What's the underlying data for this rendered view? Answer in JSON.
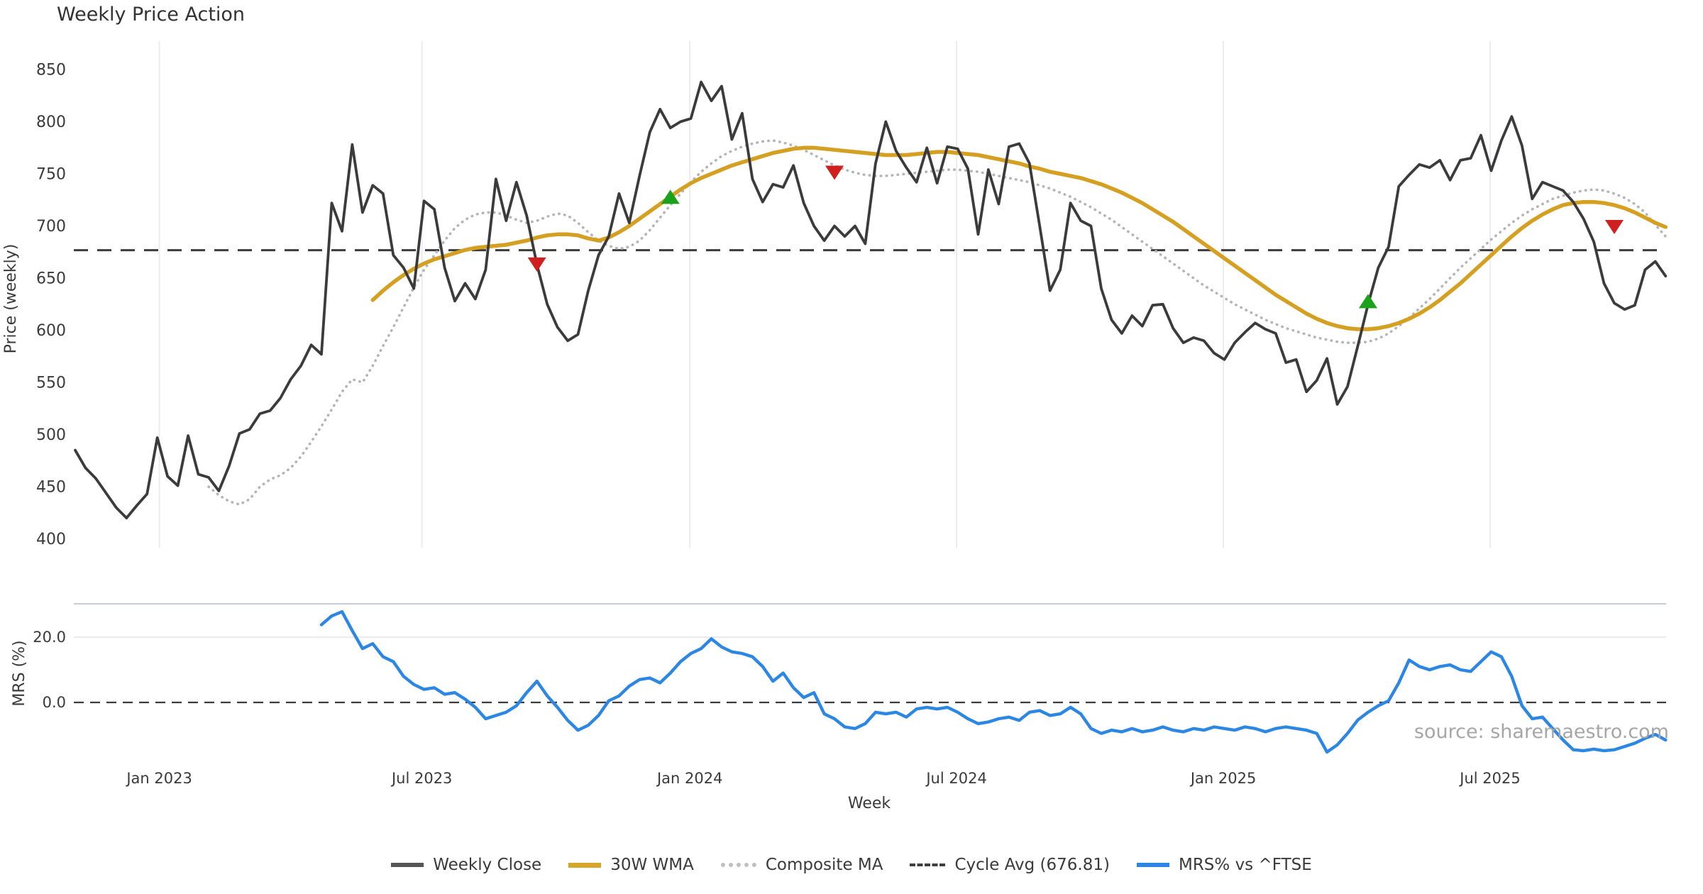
{
  "title": "Weekly Price Action",
  "source": "source: sharemaestro.com",
  "x_label": "Week",
  "price_panel": {
    "y_label": "Price (weekly)",
    "y_ticks": [
      850,
      800,
      750,
      700,
      650,
      600,
      550,
      500,
      450,
      400
    ]
  },
  "mrs_panel": {
    "y_label": "MRS (%)",
    "y_ticks": [
      {
        "label": "20.0",
        "value": 20
      },
      {
        "label": "0.0",
        "value": 0
      }
    ]
  },
  "legend": [
    {
      "label": "Weekly Close",
      "style": "solid-dark"
    },
    {
      "label": "30W WMA",
      "style": "solid-gold"
    },
    {
      "label": "Composite MA",
      "style": "dotted-gray"
    },
    {
      "label": "Cycle Avg (676.81)",
      "style": "dashed-dark"
    },
    {
      "label": "MRS% vs ^FTSE",
      "style": "solid-blue"
    }
  ],
  "colors": {
    "weekly_close": "#3b3b3b",
    "wma": "#d5a021",
    "composite": "#b5b5b5",
    "cycle_avg": "#3b3b3b",
    "mrs": "#2b87e3",
    "buy_marker": "#1aa21a",
    "sell_marker": "#d01f1f",
    "gridline": "#e9ebf0",
    "spine": "#c9ccd4",
    "tick_text": "#3a3a3a"
  },
  "chart_data": {
    "type": "line",
    "title": "Weekly Price Action",
    "xlabel": "Week",
    "x_unit": "week_index",
    "x_ticks": [
      {
        "label": "Jan 2023",
        "week": 8.2
      },
      {
        "label": "Jul 2023",
        "week": 33.8
      },
      {
        "label": "Jan 2024",
        "week": 59.9
      },
      {
        "label": "Jul 2024",
        "week": 85.9
      },
      {
        "label": "Jan 2025",
        "week": 111.9
      },
      {
        "label": "Jul 2025",
        "week": 137.9
      }
    ],
    "panels": [
      {
        "name": "price",
        "ylabel": "Price (weekly)",
        "ylim": [
          400,
          860
        ],
        "cycle_avg": 676.81,
        "series": [
          {
            "name": "Weekly Close",
            "start_week": 0,
            "values": [
              485,
              468,
              458,
              444,
              430,
              420,
              432,
              443,
              497,
              460,
              451,
              499,
              462,
              459,
              446,
              470,
              501,
              505,
              520,
              523,
              535,
              553,
              566,
              586,
              577,
              722,
              695,
              778,
              713,
              739,
              731,
              672,
              660,
              640,
              724,
              716,
              660,
              628,
              645,
              630,
              658,
              745,
              705,
              742,
              710,
              663,
              625,
              603,
              590,
              596,
              638,
              672,
              690,
              731,
              703,
              748,
              790,
              812,
              794,
              800,
              803,
              838,
              820,
              834,
              783,
              808,
              745,
              723,
              740,
              737,
              758,
              722,
              700,
              686,
              700,
              690,
              700,
              683,
              760,
              800,
              772,
              756,
              742,
              775,
              741,
              776,
              774,
              755,
              692,
              754,
              721,
              776,
              779,
              760,
              700,
              638,
              658,
              722,
              705,
              700,
              640,
              610,
              597,
              614,
              604,
              624,
              625,
              602,
              588,
              593,
              590,
              578,
              572,
              588,
              598,
              607,
              601,
              597,
              569,
              572,
              541,
              552,
              573,
              529,
              546,
              585,
              625,
              660,
              680,
              738,
              749,
              759,
              756,
              763,
              744,
              763,
              765,
              787,
              753,
              782,
              805,
              777,
              726,
              742,
              738,
              734,
              723,
              707,
              685,
              645,
              626,
              620,
              624,
              658,
              666,
              652
            ]
          },
          {
            "name": "30W WMA",
            "start_week": 29,
            "values": [
              629,
              638,
              646,
              653,
              659,
              664,
              668,
              671,
              674,
              677,
              679,
              680,
              681,
              682,
              684,
              686,
              689,
              691,
              692,
              692,
              691,
              688,
              686,
              689,
              694,
              700,
              707,
              714,
              721,
              728,
              735,
              741,
              746,
              750,
              754,
              758,
              761,
              764,
              767,
              770,
              772,
              774,
              775,
              775,
              774,
              773,
              772,
              771,
              770,
              769,
              768,
              768,
              768,
              769,
              770,
              771,
              771,
              770,
              769,
              768,
              766,
              764,
              762,
              760,
              757,
              755,
              752,
              750,
              748,
              746,
              743,
              740,
              736,
              732,
              727,
              722,
              716,
              710,
              704,
              697,
              690,
              683,
              676,
              669,
              662,
              655,
              648,
              641,
              634,
              628,
              622,
              616,
              611,
              607,
              604,
              602,
              601,
              601,
              602,
              604,
              607,
              611,
              616,
              622,
              629,
              637,
              645,
              654,
              663,
              672,
              681,
              690,
              698,
              705,
              711,
              716,
              720,
              722,
              723,
              723,
              722,
              720,
              717,
              713,
              708,
              703,
              699
            ]
          },
          {
            "name": "Composite MA",
            "start_week": 13,
            "values": [
              450,
              442,
              436,
              433,
              438,
              450,
              457,
              461,
              468,
              479,
              493,
              508,
              524,
              541,
              553,
              550,
              566,
              585,
              603,
              622,
              641,
              658,
              672,
              686,
              698,
              706,
              711,
              713,
              713,
              710,
              706,
              703,
              705,
              709,
              712,
              710,
              703,
              694,
              686,
              681,
              678,
              680,
              686,
              696,
              708,
              720,
              731,
              742,
              752,
              760,
              767,
              772,
              776,
              779,
              781,
              782,
              780,
              777,
              773,
              768,
              763,
              758,
              754,
              751,
              749,
              748,
              748,
              749,
              750,
              751,
              752,
              753,
              754,
              754,
              753,
              752,
              750,
              748,
              746,
              744,
              742,
              739,
              736,
              732,
              728,
              723,
              718,
              712,
              706,
              699,
              692,
              685,
              678,
              671,
              664,
              657,
              650,
              643,
              637,
              631,
              625,
              620,
              615,
              610,
              606,
              602,
              599,
              596,
              593,
              591,
              589,
              588,
              588,
              589,
              592,
              597,
              604,
              612,
              621,
              630,
              640,
              650,
              660,
              669,
              678,
              687,
              695,
              703,
              710,
              716,
              721,
              726,
              729,
              732,
              734,
              735,
              734,
              731,
              727,
              721,
              713,
              701,
              690
            ]
          }
        ],
        "markers": [
          {
            "type": "sell",
            "week": 45,
            "price": 663
          },
          {
            "type": "buy",
            "week": 58,
            "price": 728
          },
          {
            "type": "sell",
            "week": 74,
            "price": 751
          },
          {
            "type": "buy",
            "week": 126,
            "price": 628
          },
          {
            "type": "sell",
            "week": 150,
            "price": 699
          }
        ]
      },
      {
        "name": "mrs",
        "ylabel": "MRS (%)",
        "ylim": [
          -17,
          30
        ],
        "zero_line": 0,
        "series": [
          {
            "name": "MRS% vs ^FTSE",
            "start_week": 24,
            "values": [
              23.8,
              26.5,
              27.8,
              22.0,
              16.5,
              18.0,
              14.0,
              12.5,
              8.0,
              5.5,
              4.0,
              4.5,
              2.5,
              3.0,
              1.0,
              -1.5,
              -5.0,
              -4.0,
              -3.0,
              -1.0,
              3.0,
              6.5,
              2.0,
              -1.5,
              -5.5,
              -8.5,
              -7.0,
              -4.0,
              0.5,
              2.0,
              5.0,
              7.0,
              7.5,
              6.0,
              9.0,
              12.5,
              15.0,
              16.5,
              19.5,
              17.0,
              15.5,
              15.0,
              14.0,
              11.0,
              6.5,
              9.0,
              4.5,
              1.5,
              3.0,
              -3.5,
              -5.0,
              -7.5,
              -8.0,
              -6.5,
              -3.0,
              -3.5,
              -3.0,
              -4.5,
              -2.0,
              -1.5,
              -2.0,
              -1.5,
              -3.0,
              -5.0,
              -6.5,
              -6.0,
              -5.0,
              -4.5,
              -5.5,
              -3.0,
              -2.5,
              -4.0,
              -3.5,
              -1.5,
              -3.5,
              -8.0,
              -9.5,
              -8.5,
              -9.0,
              -8.0,
              -9.0,
              -8.5,
              -7.5,
              -8.5,
              -9.0,
              -8.0,
              -8.5,
              -7.5,
              -8.0,
              -8.5,
              -7.5,
              -8.0,
              -9.0,
              -8.0,
              -7.5,
              -8.0,
              -8.5,
              -9.5,
              -15.2,
              -13.0,
              -9.5,
              -5.4,
              -3.0,
              -1.0,
              0.5,
              6.0,
              13.0,
              11.0,
              10.0,
              11.0,
              11.5,
              10.0,
              9.5,
              12.5,
              15.5,
              14.0,
              8.0,
              -1.0,
              -5.0,
              -4.5,
              -8.0,
              -11.5,
              -14.5,
              -14.8,
              -14.3,
              -14.8,
              -14.5,
              -13.5,
              -12.5,
              -11.0,
              -9.8,
              -11.5
            ]
          }
        ]
      }
    ]
  }
}
